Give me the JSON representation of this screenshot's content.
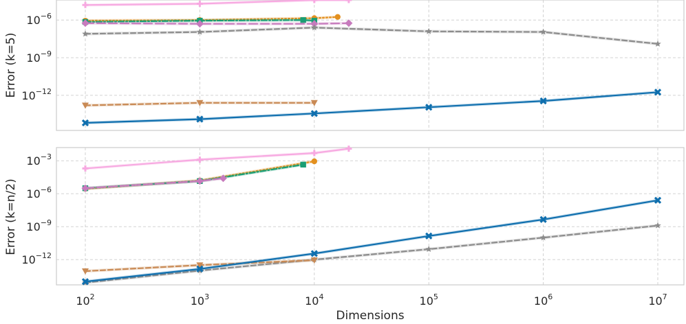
{
  "chart_data": {
    "type": "line",
    "shared_xlabel": "Dimensions",
    "xscale": "log",
    "xlim": [
      100,
      10000000
    ],
    "xticks": [
      {
        "value": 100,
        "base": "10",
        "exp": "2"
      },
      {
        "value": 1000,
        "base": "10",
        "exp": "3"
      },
      {
        "value": 10000,
        "base": "10",
        "exp": "4"
      },
      {
        "value": 100000,
        "base": "10",
        "exp": "5"
      },
      {
        "value": 1000000,
        "base": "10",
        "exp": "6"
      },
      {
        "value": 10000000,
        "base": "10",
        "exp": "7"
      }
    ],
    "panels": [
      {
        "ylabel": "Error (k=5)",
        "yscale": "log",
        "ylim_log10": [
          -14.8,
          -4.4
        ],
        "yticks": [
          {
            "log10": -6,
            "base": "10",
            "exp": "−6"
          },
          {
            "log10": -9,
            "base": "10",
            "exp": "−9"
          },
          {
            "log10": -12,
            "base": "10",
            "exp": "−12"
          }
        ],
        "series": [
          {
            "name": "pink plus",
            "color": "#f7a9e1",
            "dash": "solid",
            "marker": "plus",
            "width": 1.5,
            "points": [
              [
                100,
                -4.8
              ],
              [
                1000,
                -4.7
              ],
              [
                10000,
                -4.4
              ],
              [
                20000,
                -4.4
              ]
            ]
          },
          {
            "name": "orange circle",
            "color": "#e3901f",
            "dash": "dotted",
            "marker": "circle",
            "width": 2.2,
            "points": [
              [
                100,
                -6.05
              ],
              [
                1000,
                -6.0
              ],
              [
                10000,
                -5.85
              ],
              [
                16000,
                -5.75
              ]
            ]
          },
          {
            "name": "green square",
            "color": "#1a9e74",
            "dash": "dashdot",
            "marker": "square",
            "width": 2.2,
            "points": [
              [
                100,
                -6.15
              ],
              [
                1000,
                -6.05
              ],
              [
                8000,
                -6.0
              ],
              [
                10000,
                -6.05
              ]
            ]
          },
          {
            "name": "purple diamond",
            "color": "#c77bbd",
            "dash": "longdash",
            "marker": "diamond",
            "width": 2.2,
            "points": [
              [
                100,
                -6.25
              ],
              [
                1000,
                -6.3
              ],
              [
                10000,
                -6.3
              ],
              [
                20000,
                -6.25
              ]
            ]
          },
          {
            "name": "gray star",
            "color": "#8c8c8c",
            "dash": "dashed",
            "marker": "star",
            "width": 1.6,
            "points": [
              [
                100,
                -7.1
              ],
              [
                1000,
                -6.95
              ],
              [
                10000,
                -6.6
              ],
              [
                100000,
                -6.9
              ],
              [
                1000000,
                -6.95
              ],
              [
                10000000,
                -7.9
              ]
            ]
          },
          {
            "name": "brown triangle",
            "color": "#c98a55",
            "dash": "dashed",
            "marker": "triangle",
            "width": 2.0,
            "points": [
              [
                100,
                -12.8
              ],
              [
                1000,
                -12.6
              ],
              [
                10000,
                -12.6
              ]
            ]
          },
          {
            "name": "blue x",
            "color": "#0f6fae",
            "dash": "solid",
            "marker": "x",
            "width": 2.6,
            "points": [
              [
                100,
                -14.2
              ],
              [
                1000,
                -13.9
              ],
              [
                10000,
                -13.45
              ],
              [
                100000,
                -12.95
              ],
              [
                1000000,
                -12.45
              ],
              [
                10000000,
                -11.75
              ]
            ]
          }
        ]
      },
      {
        "ylabel": "Error (k=n/2)",
        "yscale": "log",
        "ylim_log10": [
          -14.3,
          -1.8
        ],
        "yticks": [
          {
            "log10": -3,
            "base": "10",
            "exp": "−3"
          },
          {
            "log10": -6,
            "base": "10",
            "exp": "−6"
          },
          {
            "log10": -9,
            "base": "10",
            "exp": "−9"
          },
          {
            "log10": -12,
            "base": "10",
            "exp": "−12"
          }
        ],
        "series": [
          {
            "name": "pink plus",
            "color": "#f7a9e1",
            "dash": "solid",
            "marker": "plus",
            "width": 1.5,
            "points": [
              [
                100,
                -3.7
              ],
              [
                1000,
                -2.9
              ],
              [
                10000,
                -2.3
              ],
              [
                20000,
                -1.9
              ]
            ]
          },
          {
            "name": "orange circle",
            "color": "#e3901f",
            "dash": "dotted",
            "marker": "circle",
            "width": 2.2,
            "points": [
              [
                100,
                -5.55
              ],
              [
                1000,
                -4.8
              ],
              [
                10000,
                -3.05
              ]
            ]
          },
          {
            "name": "green square",
            "color": "#1a9e74",
            "dash": "dashdot",
            "marker": "square",
            "width": 2.2,
            "points": [
              [
                100,
                -5.5
              ],
              [
                1000,
                -4.85
              ],
              [
                8000,
                -3.35
              ]
            ]
          },
          {
            "name": "purple diamond",
            "color": "#c77bbd",
            "dash": "longdash",
            "marker": "diamond",
            "width": 2.2,
            "points": [
              [
                100,
                -5.5
              ],
              [
                1000,
                -4.85
              ],
              [
                1600,
                -4.6
              ]
            ]
          },
          {
            "name": "gray star",
            "color": "#8c8c8c",
            "dash": "dashed",
            "marker": "star",
            "width": 1.6,
            "points": [
              [
                100,
                -14.1
              ],
              [
                1000,
                -13.0
              ],
              [
                10000,
                -12.0
              ],
              [
                100000,
                -11.05
              ],
              [
                1000000,
                -10.0
              ],
              [
                10000000,
                -8.9
              ]
            ]
          },
          {
            "name": "brown triangle",
            "color": "#c98a55",
            "dash": "dashed",
            "marker": "triangle",
            "width": 2.0,
            "points": [
              [
                100,
                -13.05
              ],
              [
                1000,
                -12.5
              ],
              [
                10000,
                -12.05
              ]
            ]
          },
          {
            "name": "blue x",
            "color": "#0f6fae",
            "dash": "solid",
            "marker": "x",
            "width": 2.6,
            "points": [
              [
                100,
                -14.0
              ],
              [
                1000,
                -12.85
              ],
              [
                10000,
                -11.45
              ],
              [
                100000,
                -9.85
              ],
              [
                1000000,
                -8.35
              ],
              [
                10000000,
                -6.6
              ]
            ]
          }
        ]
      }
    ]
  }
}
